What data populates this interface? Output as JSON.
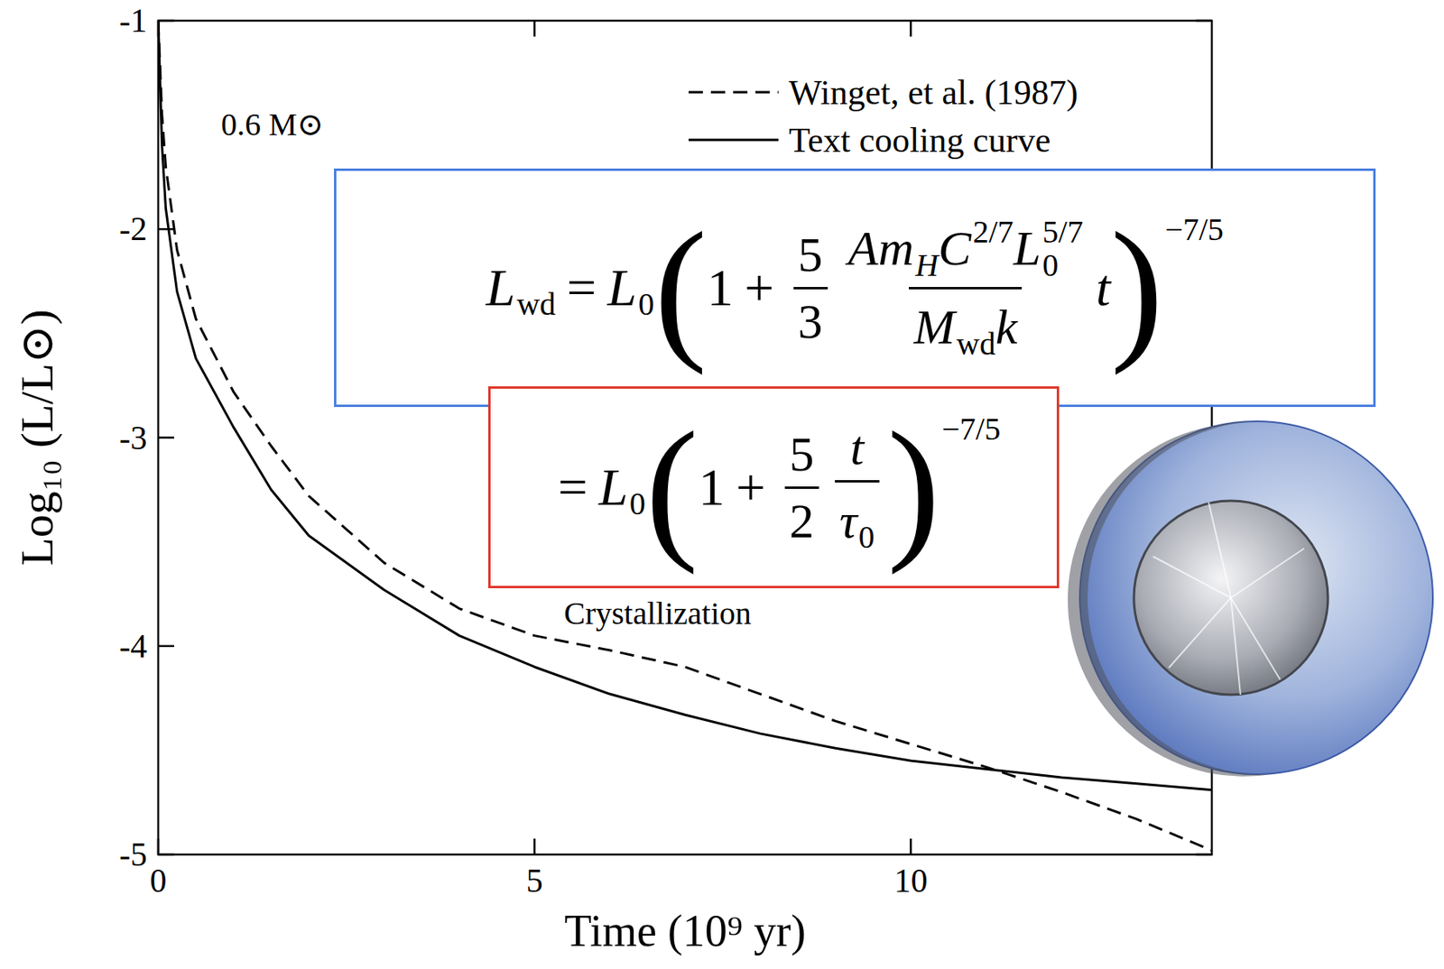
{
  "chart_data": {
    "type": "line",
    "x_label": "Time (10⁹ yr)",
    "y_label": "Log₁₀ (L/L⊙)",
    "xlim": [
      0,
      14
    ],
    "xticks": [
      0,
      5,
      10
    ],
    "ylim": [
      -5,
      -1
    ],
    "yticks": [
      -5,
      -4,
      -3,
      -2,
      -1
    ],
    "x": [
      0,
      0.05,
      0.1,
      0.25,
      0.5,
      1,
      1.5,
      2,
      3,
      4,
      5,
      6,
      7,
      8,
      9,
      10,
      11,
      12,
      13,
      14
    ],
    "series": [
      {
        "name": "Winget, et al. (1987)",
        "color": "#000000",
        "line_style": "dashed",
        "values": [
          -1,
          -1.45,
          -1.7,
          -2.1,
          -2.43,
          -2.78,
          -3.04,
          -3.28,
          -3.6,
          -3.82,
          -3.95,
          -4.02,
          -4.1,
          -4.23,
          -4.36,
          -4.47,
          -4.58,
          -4.7,
          -4.83,
          -4.98
        ]
      },
      {
        "name": "Text cooling curve",
        "color": "#000000",
        "line_style": "solid",
        "values": [
          -1,
          -1.6,
          -1.9,
          -2.3,
          -2.62,
          -2.95,
          -3.25,
          -3.47,
          -3.73,
          -3.95,
          -4.1,
          -4.23,
          -4.33,
          -4.42,
          -4.49,
          -4.55,
          -4.59,
          -4.63,
          -4.66,
          -4.69
        ]
      }
    ],
    "legend": "upper right",
    "annotations": [
      "0.6 M⊙",
      "Crystallization"
    ],
    "equations": [
      [
        {
          "text": "L",
          "sub": "wd"
        },
        {
          "text": "="
        },
        {
          "text": "L",
          "sub": "0"
        },
        {
          "text": "("
        },
        {
          "text": "1"
        },
        {
          "text": "+"
        },
        {
          "frac": [
            [
              {
                "text": "5"
              }
            ],
            [
              {
                "text": "3"
              }
            ]
          ]
        },
        {
          "frac": [
            [
              {
                "text": "A"
              },
              {
                "text": "m",
                "sub": "H"
              },
              {
                "text": "C",
                "sup": "2/7"
              },
              {
                "text": "L",
                "sub": "0",
                "sup": "5/7"
              }
            ],
            [
              {
                "text": "M",
                "sub": "wd"
              },
              {
                "text": "k"
              }
            ]
          ]
        },
        {
          "text": "t"
        },
        {
          "text": ")",
          "sup": "−7/5"
        }
      ],
      [
        {
          "text": "="
        },
        {
          "text": "L",
          "sub": "0"
        },
        {
          "text": "("
        },
        {
          "text": "1"
        },
        {
          "text": "+"
        },
        {
          "frac": [
            [
              {
                "text": "5"
              }
            ],
            [
              {
                "text": "2"
              }
            ]
          ]
        },
        {
          "frac": [
            [
              {
                "text": "t"
              }
            ],
            [
              {
                "text": "τ",
                "sub": "0"
              }
            ]
          ]
        },
        {
          "text": ")",
          "sup": "−7/5"
        }
      ]
    ]
  }
}
